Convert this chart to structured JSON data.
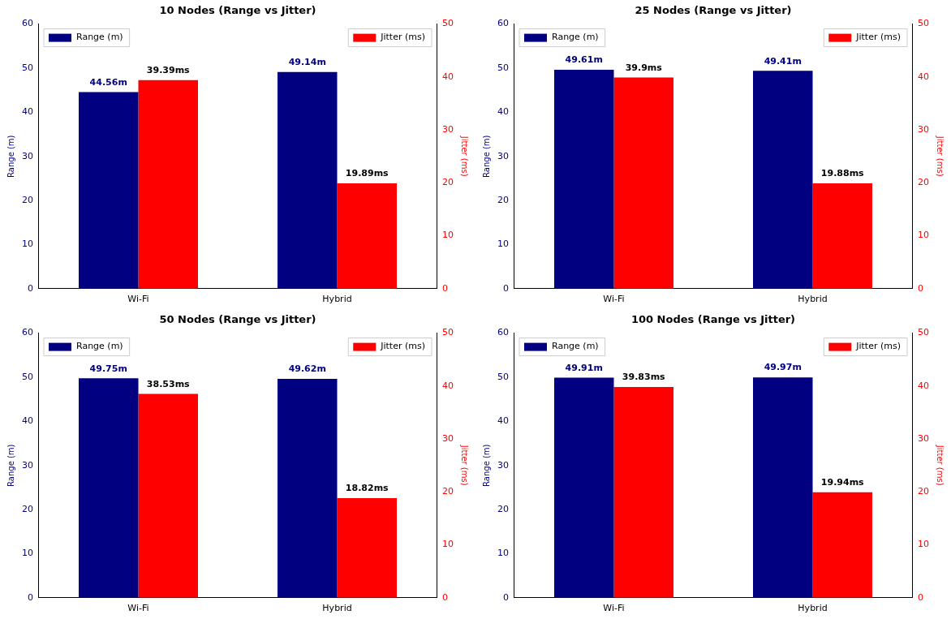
{
  "chart_data": [
    {
      "type": "bar",
      "title": "10 Nodes (Range vs Jitter)",
      "categories": [
        "Wi-Fi",
        "Hybrid"
      ],
      "ylabel": "Range (m)",
      "y2label": "Jitter (ms)",
      "ylim": [
        0,
        60
      ],
      "yticks": [
        0,
        10,
        20,
        30,
        40,
        50,
        60
      ],
      "y2lim": [
        0,
        50
      ],
      "y2ticks": [
        0,
        10,
        20,
        30,
        40,
        50
      ],
      "legend": "top",
      "series": [
        {
          "name": "Range (m)",
          "color": "#000080",
          "values": [
            44.56,
            49.14
          ],
          "value_labels": [
            "44.56m",
            "49.14m"
          ]
        },
        {
          "name": "Jitter (ms)",
          "color": "#ff0000",
          "axis": "y2",
          "values": [
            39.39,
            19.89
          ],
          "value_labels": [
            "39.39ms",
            "19.89ms"
          ]
        }
      ]
    },
    {
      "type": "bar",
      "title": "25 Nodes (Range vs Jitter)",
      "categories": [
        "Wi-Fi",
        "Hybrid"
      ],
      "ylabel": "Range (m)",
      "y2label": "Jitter (ms)",
      "ylim": [
        0,
        60
      ],
      "yticks": [
        0,
        10,
        20,
        30,
        40,
        50,
        60
      ],
      "y2lim": [
        0,
        50
      ],
      "y2ticks": [
        0,
        10,
        20,
        30,
        40,
        50
      ],
      "legend": "top",
      "series": [
        {
          "name": "Range (m)",
          "color": "#000080",
          "values": [
            49.61,
            49.41
          ],
          "value_labels": [
            "49.61m",
            "49.41m"
          ]
        },
        {
          "name": "Jitter (ms)",
          "color": "#ff0000",
          "axis": "y2",
          "values": [
            39.9,
            19.88
          ],
          "value_labels": [
            "39.9ms",
            "19.88ms"
          ]
        }
      ]
    },
    {
      "type": "bar",
      "title": "50 Nodes (Range vs Jitter)",
      "categories": [
        "Wi-Fi",
        "Hybrid"
      ],
      "ylabel": "Range (m)",
      "y2label": "Jitter (ms)",
      "ylim": [
        0,
        60
      ],
      "yticks": [
        0,
        10,
        20,
        30,
        40,
        50,
        60
      ],
      "y2lim": [
        0,
        50
      ],
      "y2ticks": [
        0,
        10,
        20,
        30,
        40,
        50
      ],
      "legend": "top",
      "series": [
        {
          "name": "Range (m)",
          "color": "#000080",
          "values": [
            49.75,
            49.62
          ],
          "value_labels": [
            "49.75m",
            "49.62m"
          ]
        },
        {
          "name": "Jitter (ms)",
          "color": "#ff0000",
          "axis": "y2",
          "values": [
            38.53,
            18.82
          ],
          "value_labels": [
            "38.53ms",
            "18.82ms"
          ]
        }
      ]
    },
    {
      "type": "bar",
      "title": "100 Nodes (Range vs Jitter)",
      "categories": [
        "Wi-Fi",
        "Hybrid"
      ],
      "ylabel": "Range (m)",
      "y2label": "Jitter (ms)",
      "ylim": [
        0,
        60
      ],
      "yticks": [
        0,
        10,
        20,
        30,
        40,
        50,
        60
      ],
      "y2lim": [
        0,
        50
      ],
      "y2ticks": [
        0,
        10,
        20,
        30,
        40,
        50
      ],
      "legend": "top",
      "series": [
        {
          "name": "Range (m)",
          "color": "#000080",
          "values": [
            49.91,
            49.97
          ],
          "value_labels": [
            "49.91m",
            "49.97m"
          ]
        },
        {
          "name": "Jitter (ms)",
          "color": "#ff0000",
          "axis": "y2",
          "values": [
            39.83,
            19.94
          ],
          "value_labels": [
            "39.83ms",
            "19.94ms"
          ]
        }
      ]
    }
  ]
}
